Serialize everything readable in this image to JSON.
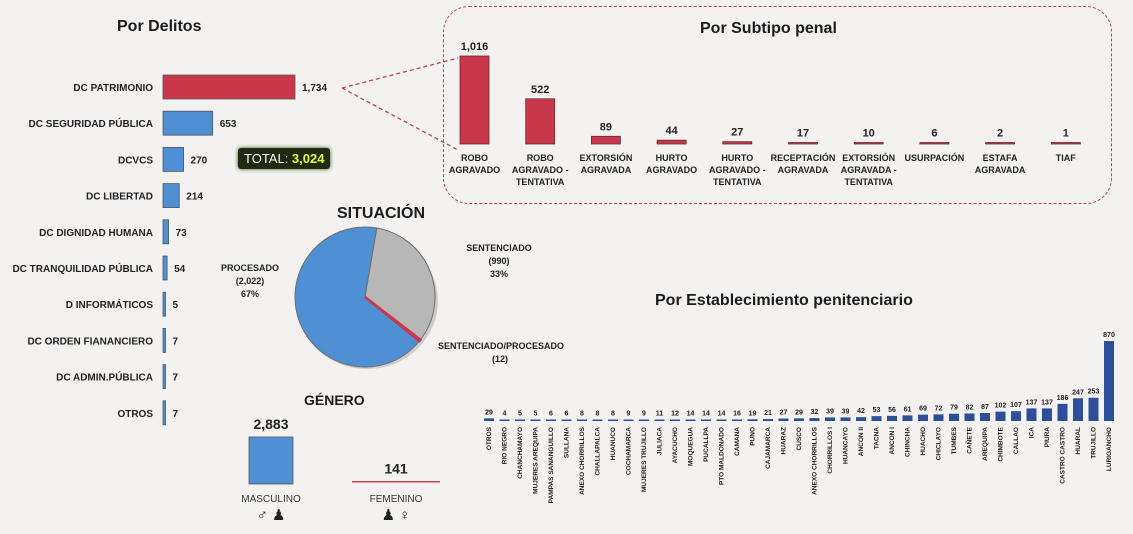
{
  "colors": {
    "red": "#c8374a",
    "blue": "#4f8fd4",
    "navy": "#2d4f9a",
    "gray": "#b7b7b7",
    "badge_bg": "#1f2a10",
    "badge_fg": "#e6ff3a",
    "outline": "#c0454f"
  },
  "delitos": {
    "title": "Por Delitos",
    "total_prefix": "TOTAL: ",
    "total_value": "3,024",
    "chart_data": {
      "type": "bar",
      "categories": [
        "DC PATRIMONIO",
        "DC SEGURIDAD PÚBLICA",
        "DCVCS",
        "DC LIBERTAD",
        "DC DIGNIDAD HUMANA",
        "DC TRANQUILIDAD PÚBLICA",
        "D INFORMÁTICOS",
        "DC ORDEN FIANANCIERO",
        "DC ADMIN.PÚBLICA",
        "OTROS"
      ],
      "values": [
        1734,
        653,
        270,
        214,
        73,
        54,
        5,
        7,
        7,
        7
      ],
      "labels": [
        "1,734",
        "653",
        "270",
        "214",
        "73",
        "54",
        "5",
        "7",
        "7",
        "7"
      ],
      "colors": [
        "red",
        "blue",
        "blue",
        "blue",
        "blue",
        "blue",
        "blue",
        "blue",
        "blue",
        "blue"
      ],
      "xlim": [
        0,
        1734
      ]
    }
  },
  "subtipo": {
    "title": "Por Subtipo penal",
    "chart_data": {
      "type": "bar",
      "categories": [
        [
          "ROBO",
          "AGRAVADO"
        ],
        [
          "ROBO",
          "AGRAVADO -",
          "TENTATIVA"
        ],
        [
          "EXTORSIÓN",
          "AGRAVADA"
        ],
        [
          "HURTO",
          "AGRAVADO"
        ],
        [
          "HURTO",
          "AGRAVADO -",
          "TENTATIVA"
        ],
        [
          "RECEPTACIÓN",
          "AGRAVADA"
        ],
        [
          "EXTORSIÓN",
          "AGRAVADA -",
          "TENTATIVA"
        ],
        [
          "USURPACIÓN"
        ],
        [
          "ESTAFA",
          "AGRAVADA"
        ],
        [
          "TIAF"
        ]
      ],
      "values": [
        1016,
        522,
        89,
        44,
        27,
        17,
        10,
        6,
        2,
        1
      ],
      "labels": [
        "1,016",
        "522",
        "89",
        "44",
        "27",
        "17",
        "10",
        "6",
        "2",
        "1"
      ],
      "ylim": [
        0,
        1016
      ]
    }
  },
  "situacion": {
    "title": "SITUACIÓN",
    "chart_data": {
      "type": "pie",
      "slices": [
        {
          "name": "PROCESADO",
          "count": "(2,022)",
          "pct": "67%",
          "value": 2022,
          "color": "blue"
        },
        {
          "name": "SENTENCIADO",
          "count": "(990)",
          "pct": "33%",
          "value": 990,
          "color": "gray"
        },
        {
          "name": "SENTENCIADO/PROCESADO",
          "count": "(12)",
          "pct": "",
          "value": 12,
          "color": "red"
        }
      ]
    }
  },
  "genero": {
    "title": "GÉNERO",
    "chart_data": {
      "type": "bar",
      "categories": [
        "MASCULINO",
        "FEMENINO"
      ],
      "values": [
        2883,
        141
      ],
      "labels": [
        "2,883",
        "141"
      ],
      "symbols": [
        "♂ ♟",
        "♟ ♀"
      ]
    }
  },
  "establecimiento": {
    "title": "Por Establecimiento penitenciario",
    "chart_data": {
      "type": "bar",
      "categories": [
        "OTROS",
        "RIO NEGRO",
        "CHANCHAMAYO",
        "MUJERES AREQUIPA",
        "PAMPAS SANANGUILLO",
        "SULLANA",
        "ANEXO CHORRILLOS",
        "CHALLAPALCA",
        "HUANUCO",
        "COCHAMARCA",
        "MUJERES TRUJILLO",
        "JULIACA",
        "AYACUCHO",
        "MOQUEGUA",
        "PUCALLPA",
        "PTO MALDONADO",
        "CAMANA",
        "PUNO",
        "CAJAMARCA",
        "HUARAZ",
        "CUSCO",
        "ANEXO CHORRILLOS",
        "CHORRILLOS I",
        "HUANCAYO",
        "ANCON II",
        "TACNA",
        "ANCON I",
        "CHINCHA",
        "HUACHO",
        "CHICLAYO",
        "TUMBES",
        "CAÑETE",
        "AREQUIPA",
        "CHIMBOTE",
        "CALLAO",
        "ICA",
        "PIURA",
        "CASTRO CASTRO",
        "HUARAL",
        "TRUJILLO",
        "LURIGANCHO"
      ],
      "values": [
        29,
        4,
        5,
        5,
        6,
        6,
        8,
        8,
        8,
        9,
        9,
        11,
        12,
        14,
        14,
        14,
        16,
        19,
        21,
        27,
        29,
        32,
        39,
        39,
        42,
        53,
        56,
        61,
        69,
        72,
        79,
        82,
        87,
        102,
        107,
        137,
        137,
        186,
        247,
        253,
        870
      ],
      "ylim": [
        0,
        870
      ]
    }
  }
}
